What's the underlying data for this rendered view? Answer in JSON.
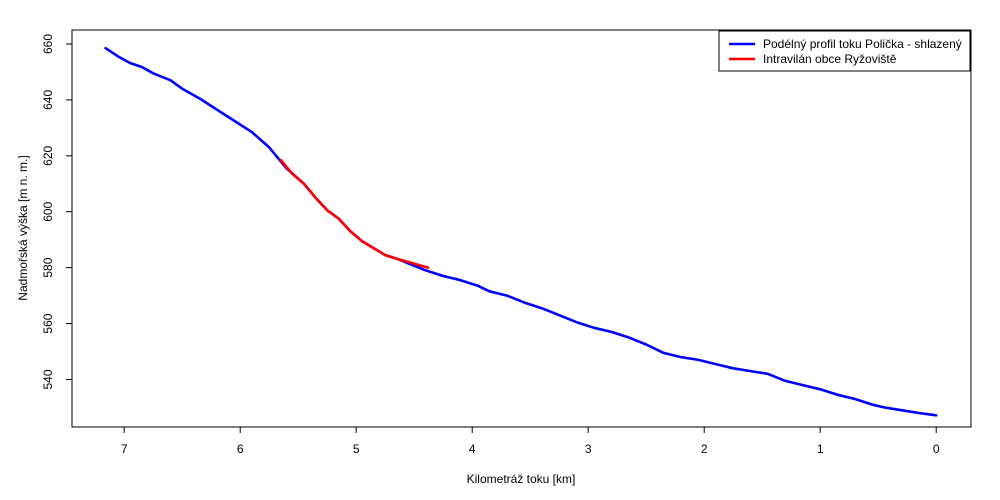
{
  "chart_data": {
    "type": "line",
    "xlabel": "Kilometráž toku [km]",
    "ylabel": "Nadmořská výška [m n. m.]",
    "xlim": [
      7.45,
      -0.3
    ],
    "ylim": [
      523,
      665
    ],
    "x_ticks": [
      "7",
      "6",
      "5",
      "4",
      "3",
      "2",
      "1",
      "0"
    ],
    "y_ticks": [
      "540",
      "560",
      "580",
      "600",
      "620",
      "640",
      "660"
    ],
    "legend_position": "top-right",
    "grid": false,
    "series": [
      {
        "name": "Podélný profil toku Polička - shlazený",
        "color": "#0000ff",
        "x": [
          7.16,
          7.05,
          6.95,
          6.85,
          6.75,
          6.6,
          6.5,
          6.35,
          6.2,
          6.05,
          5.9,
          5.75,
          5.6,
          5.45,
          5.35,
          5.25,
          5.15,
          5.05,
          4.95,
          4.85,
          4.75,
          4.65,
          4.55,
          4.4,
          4.25,
          4.1,
          3.95,
          3.85,
          3.7,
          3.55,
          3.4,
          3.25,
          3.1,
          2.95,
          2.8,
          2.65,
          2.5,
          2.35,
          2.2,
          2.05,
          1.9,
          1.75,
          1.6,
          1.45,
          1.3,
          1.15,
          1.0,
          0.85,
          0.7,
          0.55,
          0.45,
          0.3,
          0.15,
          0.0
        ],
        "y": [
          658.5,
          655.5,
          653.2,
          651.8,
          649.5,
          647,
          644,
          640.5,
          636.5,
          632.5,
          628.5,
          623,
          615.5,
          610,
          605,
          600.5,
          597.5,
          593,
          589.5,
          587,
          584.5,
          583.2,
          581.5,
          579,
          577,
          575.5,
          573.5,
          571.5,
          570,
          567.5,
          565.5,
          563,
          560.5,
          558.5,
          557,
          555,
          552.5,
          549.5,
          548,
          547,
          545.5,
          544,
          543,
          542,
          539.5,
          538,
          536.5,
          534.5,
          533,
          531,
          530,
          529,
          528,
          527.2
        ]
      },
      {
        "name": "Intravilán obce Ryžoviště",
        "color": "#ff0000",
        "x": [
          5.65,
          5.55,
          5.45,
          5.35,
          5.25,
          5.15,
          5.05,
          4.95,
          4.85,
          4.75,
          4.65,
          4.55,
          4.45,
          4.38
        ],
        "y": [
          618.5,
          613.5,
          610,
          605,
          600.5,
          597.5,
          593,
          589.5,
          587,
          584.5,
          583.2,
          582,
          580.8,
          580
        ]
      }
    ]
  }
}
